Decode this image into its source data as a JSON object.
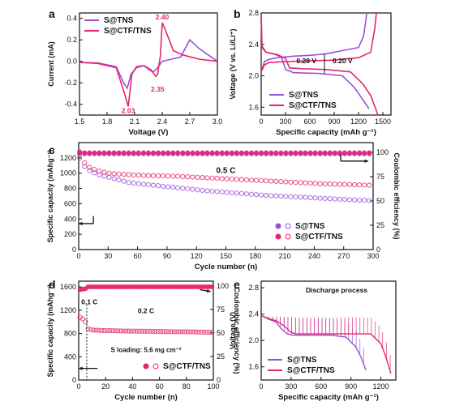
{
  "colors": {
    "tns": "#9b4fd9",
    "ctf": "#e8236f",
    "axis": "#111111",
    "anno": "#e8236f"
  },
  "chart_data": [
    {
      "panel": "a",
      "type": "line",
      "xlabel": "Voltage (V)",
      "ylabel": "Current (mA)",
      "xlim": [
        1.5,
        3.0
      ],
      "ylim": [
        -0.5,
        0.45
      ],
      "xticks": [
        "1.5",
        "1.8",
        "2.1",
        "2.4",
        "2.7",
        "3.0"
      ],
      "yticks": [
        "-0.4",
        "-0.2",
        "0.0",
        "0.2",
        "0.4"
      ],
      "annotations": [
        "2.40",
        "2.35",
        "2.03"
      ],
      "legend_position": "top-left",
      "series": [
        {
          "name": "S@TNS",
          "color": "#9b4fd9",
          "x": [
            1.5,
            1.7,
            1.9,
            1.98,
            2.02,
            2.06,
            2.12,
            2.2,
            2.26,
            2.3,
            2.34,
            2.4,
            2.5,
            2.6,
            2.7,
            2.8,
            3.0
          ],
          "y": [
            -0.01,
            -0.015,
            -0.05,
            -0.2,
            -0.25,
            -0.12,
            -0.06,
            -0.04,
            -0.08,
            -0.1,
            -0.07,
            0.0,
            0.02,
            0.04,
            0.2,
            0.12,
            0.0
          ]
        },
        {
          "name": "S@CTF/TNS",
          "color": "#e8236f",
          "x": [
            1.5,
            1.7,
            1.9,
            1.99,
            2.03,
            2.07,
            2.12,
            2.2,
            2.28,
            2.33,
            2.35,
            2.38,
            2.4,
            2.44,
            2.52,
            2.62,
            2.8,
            3.0
          ],
          "y": [
            -0.01,
            -0.02,
            -0.06,
            -0.3,
            -0.42,
            -0.12,
            -0.05,
            -0.04,
            -0.08,
            -0.14,
            -0.12,
            0.05,
            0.36,
            0.28,
            0.1,
            0.06,
            0.02,
            0.0
          ]
        }
      ]
    },
    {
      "panel": "b",
      "type": "line",
      "xlabel": "Specific capacity (mAh g⁻¹)",
      "ylabel": "Voltage (V vs. Li/Li⁺)",
      "xlim": [
        0,
        1600
      ],
      "ylim": [
        1.5,
        2.8
      ],
      "xticks": [
        "0",
        "300",
        "600",
        "900",
        "1200",
        "1500"
      ],
      "yticks": [
        "1.6",
        "2.0",
        "2.4",
        "2.8"
      ],
      "annotations": [
        "0.28 V",
        "0.20 V"
      ],
      "legend_position": "bottom-left",
      "series": [
        {
          "name": "S@TNS charge",
          "color": "#9b4fd9",
          "x": [
            0,
            40,
            100,
            200,
            400,
            600,
            800,
            1000,
            1200,
            1260,
            1290,
            1300
          ],
          "y": [
            2.05,
            2.18,
            2.21,
            2.23,
            2.25,
            2.26,
            2.28,
            2.32,
            2.36,
            2.5,
            2.7,
            2.8
          ]
        },
        {
          "name": "S@TNS discharge",
          "color": "#9b4fd9",
          "x": [
            0,
            10,
            60,
            150,
            250,
            300,
            400,
            700,
            1000,
            1150,
            1250,
            1330
          ],
          "y": [
            2.75,
            2.38,
            2.3,
            2.28,
            2.24,
            2.08,
            2.04,
            2.03,
            2.0,
            1.85,
            1.7,
            1.58
          ]
        },
        {
          "name": "S@CTF/TNS charge",
          "color": "#e8236f",
          "x": [
            0,
            40,
            100,
            300,
            600,
            900,
            1200,
            1350,
            1400,
            1420
          ],
          "y": [
            2.05,
            2.14,
            2.17,
            2.18,
            2.19,
            2.2,
            2.23,
            2.3,
            2.6,
            2.8
          ]
        },
        {
          "name": "S@CTF/TNS discharge",
          "color": "#e8236f",
          "x": [
            0,
            10,
            60,
            200,
            300,
            350,
            500,
            800,
            1100,
            1250,
            1350,
            1440
          ],
          "y": [
            2.75,
            2.36,
            2.3,
            2.27,
            2.22,
            2.1,
            2.09,
            2.08,
            2.05,
            1.9,
            1.75,
            1.5
          ]
        }
      ]
    },
    {
      "panel": "c",
      "type": "scatter",
      "xlabel": "Cycle number (n)",
      "ylabel": "Specific capacity (mAhg⁻¹)",
      "y2label": "Coulombic efficiency (%)",
      "xlim": [
        0,
        300
      ],
      "ylim": [
        0,
        1400
      ],
      "y2lim": [
        0,
        110
      ],
      "xticks": [
        "0",
        "30",
        "60",
        "90",
        "120",
        "150",
        "180",
        "210",
        "240",
        "270",
        "300"
      ],
      "yticks": [
        "0",
        "200",
        "400",
        "600",
        "800",
        "1000",
        "1200"
      ],
      "y2ticks": [
        "0",
        "25",
        "50",
        "75",
        "100"
      ],
      "annotations": [
        "0.5 C"
      ],
      "legend_position": "bottom-right",
      "series": [
        {
          "name": "S@TNS",
          "color": "#9b4fd9",
          "x": [
            1,
            5,
            10,
            20,
            30,
            50,
            70,
            100,
            130,
            160,
            190,
            220,
            250,
            280,
            300
          ],
          "y": [
            1200,
            1100,
            1040,
            980,
            950,
            880,
            850,
            810,
            770,
            740,
            710,
            690,
            670,
            650,
            640
          ]
        },
        {
          "name": "S@CTF/TNS",
          "color": "#e8236f",
          "x": [
            1,
            5,
            10,
            20,
            30,
            50,
            70,
            100,
            130,
            160,
            190,
            220,
            250,
            280,
            300
          ],
          "y": [
            1280,
            1150,
            1080,
            1030,
            1000,
            980,
            970,
            960,
            940,
            920,
            900,
            880,
            860,
            850,
            840
          ]
        },
        {
          "name": "S@TNS CE",
          "color": "#9b4fd9",
          "axis": "y2",
          "x": [
            1,
            300
          ],
          "y": [
            98.5,
            98.5
          ]
        },
        {
          "name": "S@CTF/TNS CE",
          "color": "#e8236f",
          "axis": "y2",
          "x": [
            1,
            300
          ],
          "y": [
            99.5,
            99.5
          ]
        }
      ]
    },
    {
      "panel": "d",
      "type": "scatter",
      "xlabel": "Cycle number (n)",
      "ylabel": "Specific capacity (mAhg⁻¹)",
      "y2label": "Coulombic efficiency (%)",
      "xlim": [
        0,
        100
      ],
      "ylim": [
        0,
        1700
      ],
      "y2lim": [
        0,
        105
      ],
      "xticks": [
        "0",
        "20",
        "40",
        "60",
        "80",
        "100"
      ],
      "yticks": [
        "0",
        "400",
        "800",
        "1200",
        "1600"
      ],
      "y2ticks": [
        "0",
        "25",
        "50",
        "75",
        "100"
      ],
      "annotations": [
        "0.1 C",
        "0.2 C",
        "S loading: 5.6 mg cm⁻²"
      ],
      "legend_position": "bottom-right",
      "series": [
        {
          "name": "S@CTF/TNS",
          "color": "#e8236f",
          "x": [
            1,
            3,
            5,
            6,
            8,
            10,
            20,
            30,
            40,
            50,
            60,
            70,
            80,
            90,
            100
          ],
          "y": [
            1080,
            1050,
            1000,
            900,
            870,
            860,
            850,
            845,
            840,
            840,
            835,
            830,
            830,
            825,
            820
          ]
        },
        {
          "name": "S@CTF/TNS CE",
          "color": "#e8236f",
          "axis": "y2",
          "x": [
            1,
            5,
            6,
            100
          ],
          "y": [
            96,
            97,
            99,
            99
          ]
        }
      ]
    },
    {
      "panel": "e",
      "type": "line",
      "title": "Discharge process",
      "xlabel": "Specific capacity (mAh g⁻¹)",
      "ylabel": "Voltage (V)",
      "xlim": [
        0,
        1350
      ],
      "ylim": [
        1.4,
        2.9
      ],
      "xticks": [
        "0",
        "300",
        "600",
        "900",
        "1200"
      ],
      "yticks": [
        "1.6",
        "2.0",
        "2.4",
        "2.8"
      ],
      "legend_position": "bottom-left",
      "series": [
        {
          "name": "S@TNS",
          "color": "#9b4fd9",
          "x": [
            0,
            80,
            150,
            200,
            260,
            320,
            500,
            700,
            850,
            950,
            1000,
            1050
          ],
          "y": [
            2.38,
            2.32,
            2.28,
            2.18,
            2.1,
            2.08,
            2.08,
            2.08,
            2.05,
            1.9,
            1.75,
            1.55
          ]
        },
        {
          "name": "S@CTF/TNS",
          "color": "#e8236f",
          "x": [
            0,
            80,
            150,
            230,
            300,
            350,
            600,
            900,
            1100,
            1200,
            1250,
            1300
          ],
          "y": [
            2.38,
            2.33,
            2.3,
            2.22,
            2.12,
            2.1,
            2.1,
            2.1,
            2.1,
            1.95,
            1.75,
            1.5
          ]
        }
      ]
    }
  ]
}
